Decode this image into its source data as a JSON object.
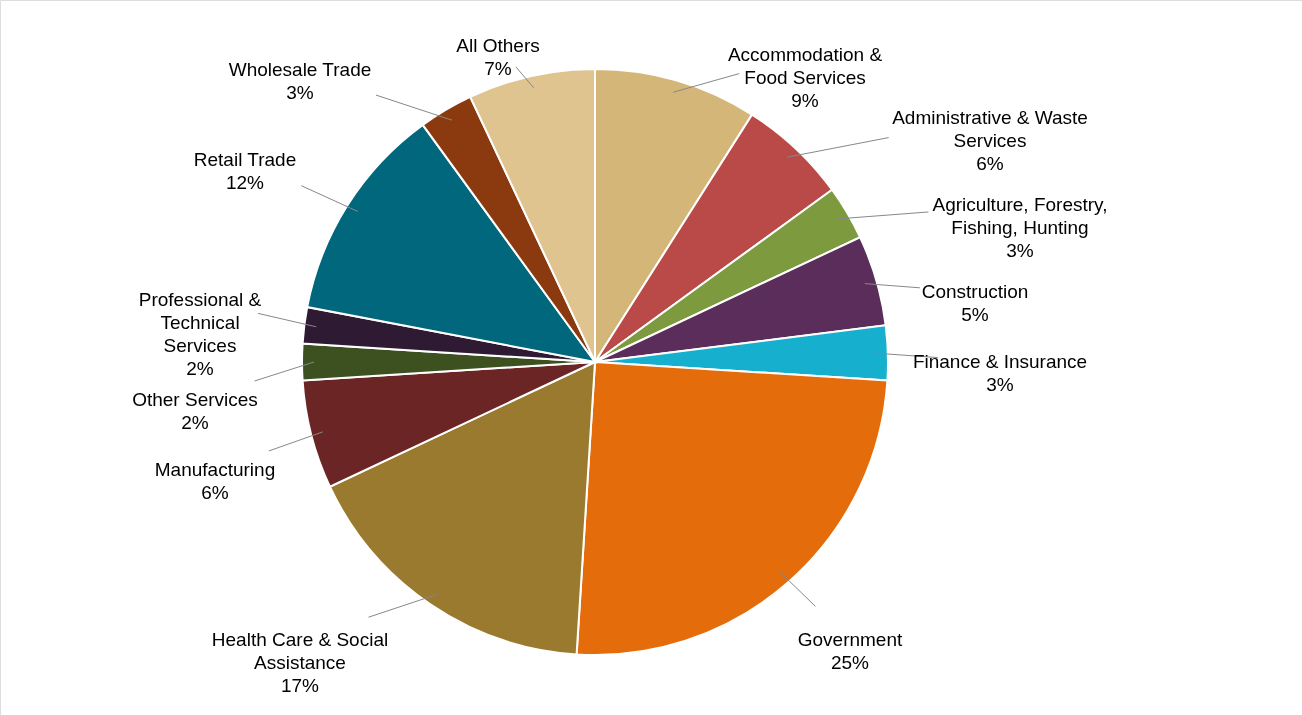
{
  "chart_data": {
    "type": "pie",
    "categories": [
      "Accommodation & Food Services",
      "Administrative & Waste Services",
      "Agriculture, Forestry, Fishing, Hunting",
      "Construction",
      "Finance & Insurance",
      "Government",
      "Health Care & Social Assistance",
      "Manufacturing",
      "Other Services",
      "Professional & Technical Services",
      "Retail Trade",
      "Wholesale Trade",
      "All Others"
    ],
    "values": [
      9,
      6,
      3,
      5,
      3,
      25,
      17,
      6,
      2,
      2,
      12,
      3,
      7
    ],
    "value_labels": [
      "9%",
      "6%",
      "3%",
      "5%",
      "3%",
      "25%",
      "17%",
      "6%",
      "2%",
      "2%",
      "12%",
      "3%",
      "7%"
    ],
    "colors": [
      "#d4b679",
      "#b94a48",
      "#7d9a3f",
      "#5a2d5a",
      "#16afce",
      "#e46c0a",
      "#997a2e",
      "#6b2525",
      "#3c5020",
      "#2e1a33",
      "#00677d",
      "#8b3a10",
      "#dfc490"
    ]
  }
}
